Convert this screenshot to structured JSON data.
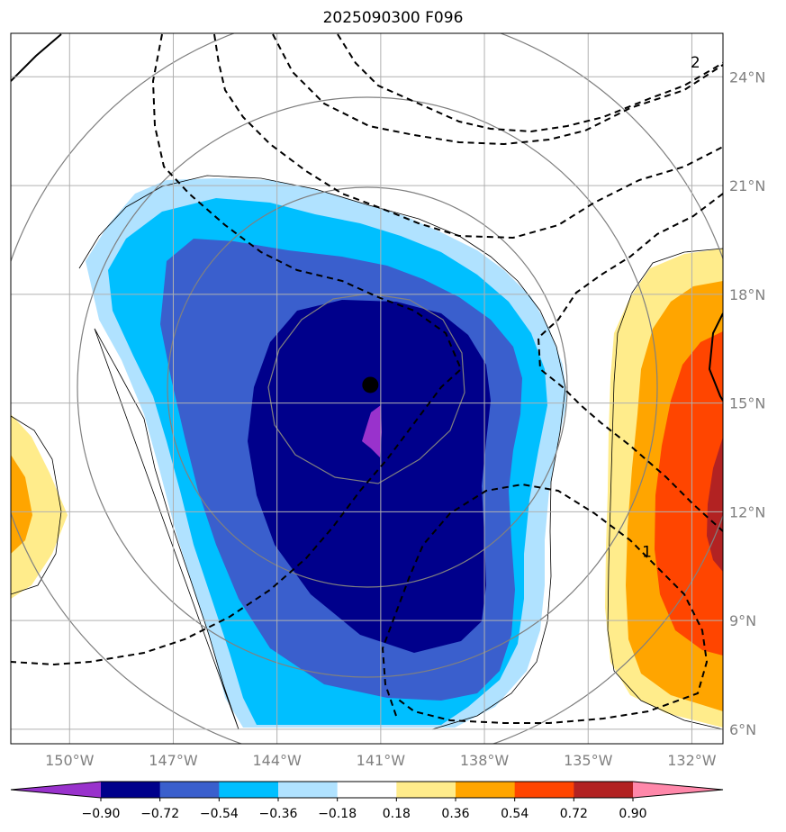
{
  "title": "2025090300 F096",
  "map": {
    "lon_range": [
      -151.7,
      -131.1
    ],
    "lat_range": [
      5.6,
      25.2
    ],
    "lon_ticks": [
      {
        "value": -150,
        "label": "150°W"
      },
      {
        "value": -147,
        "label": "147°W"
      },
      {
        "value": -144,
        "label": "144°W"
      },
      {
        "value": -141,
        "label": "141°W"
      },
      {
        "value": -138,
        "label": "138°W"
      },
      {
        "value": -135,
        "label": "135°W"
      },
      {
        "value": -132,
        "label": "132°W"
      }
    ],
    "lat_ticks": [
      {
        "value": 24,
        "label": "24°N"
      },
      {
        "value": 21,
        "label": "21°N"
      },
      {
        "value": 18,
        "label": "18°N"
      },
      {
        "value": 15,
        "label": "15°N"
      },
      {
        "value": 12,
        "label": "12°N"
      },
      {
        "value": 9,
        "label": "9°N"
      },
      {
        "value": 6,
        "label": "6°N"
      }
    ],
    "storm_center": {
      "lon": -141.3,
      "lat": 15.5
    },
    "contour_labels": [
      {
        "text": "2",
        "lon": -131.9,
        "lat": 24.4
      },
      {
        "text": "1",
        "lon": -133.3,
        "lat": 10.9
      }
    ],
    "grid": true
  },
  "colorbar": {
    "colors": [
      "#9932cc",
      "#00008b",
      "#3a5fcd",
      "#00bfff",
      "#b0e2ff",
      "#ffffff",
      "#ffec8b",
      "#ffa500",
      "#ff4500",
      "#b22222",
      "#ff88aa"
    ],
    "ticks": [
      "−0.90",
      "−0.72",
      "−0.54",
      "−0.36",
      "−0.18",
      "0.18",
      "0.36",
      "0.54",
      "0.72",
      "0.90"
    ]
  }
}
